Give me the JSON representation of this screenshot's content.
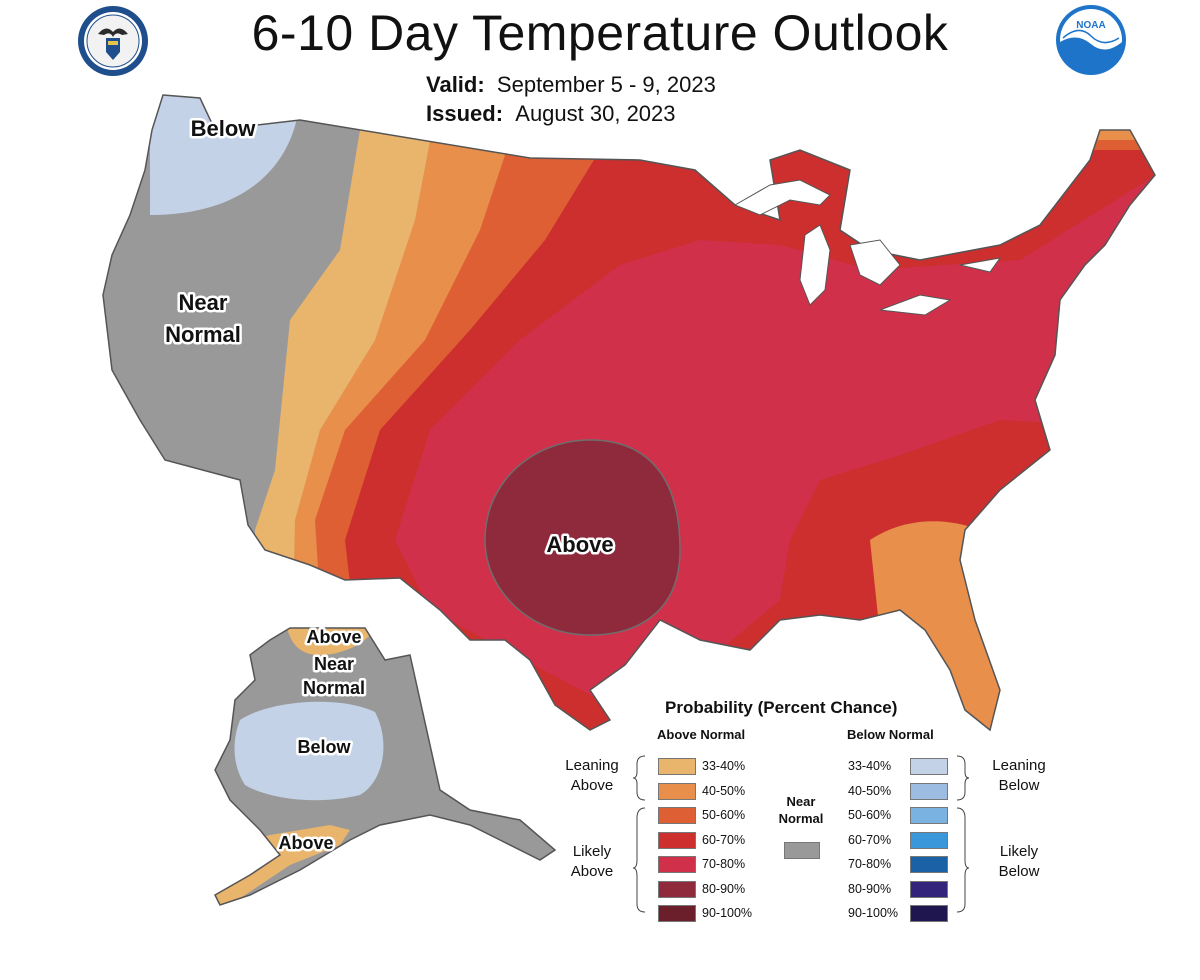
{
  "header": {
    "title": "6-10 Day Temperature Outlook",
    "valid_label": "Valid:",
    "valid_value": "September 5 - 9, 2023",
    "issued_label": "Issued:",
    "issued_value": "August 30, 2023"
  },
  "logos": {
    "doc_seal_icon": "department-of-commerce-seal",
    "noaa_icon": "noaa-logo",
    "noaa_text": "NOAA"
  },
  "map_labels": {
    "conus_below": "Below",
    "conus_near_line1": "Near",
    "conus_near_line2": "Normal",
    "conus_above": "Above",
    "alaska_above_north": "Above",
    "alaska_near_line1": "Near",
    "alaska_near_line2": "Normal",
    "alaska_below": "Below",
    "alaska_above_south": "Above"
  },
  "legend": {
    "title": "Probability (Percent Chance)",
    "above_header": "Above Normal",
    "below_header": "Below Normal",
    "near_normal_line1": "Near",
    "near_normal_line2": "Normal",
    "near_normal_color": "#999999",
    "leaning_above_line1": "Leaning",
    "leaning_above_line2": "Above",
    "likely_above_line1": "Likely",
    "likely_above_line2": "Above",
    "leaning_below_line1": "Leaning",
    "leaning_below_line2": "Below",
    "likely_below_line1": "Likely",
    "likely_below_line2": "Below",
    "above_categories": [
      {
        "range": "33-40%",
        "color": "#e9b46c"
      },
      {
        "range": "40-50%",
        "color": "#e88f4c"
      },
      {
        "range": "50-60%",
        "color": "#df5f35"
      },
      {
        "range": "60-70%",
        "color": "#cc2f2e"
      },
      {
        "range": "70-80%",
        "color": "#d1304a"
      },
      {
        "range": "80-90%",
        "color": "#8e2a3b"
      },
      {
        "range": "90-100%",
        "color": "#6a1f2a"
      }
    ],
    "below_categories": [
      {
        "range": "33-40%",
        "color": "#c4d2e8"
      },
      {
        "range": "40-50%",
        "color": "#9cbde1"
      },
      {
        "range": "50-60%",
        "color": "#7ab2e2"
      },
      {
        "range": "60-70%",
        "color": "#3a97d9"
      },
      {
        "range": "70-80%",
        "color": "#1b61a6"
      },
      {
        "range": "80-90%",
        "color": "#33237a"
      },
      {
        "range": "90-100%",
        "color": "#20164f"
      }
    ]
  }
}
